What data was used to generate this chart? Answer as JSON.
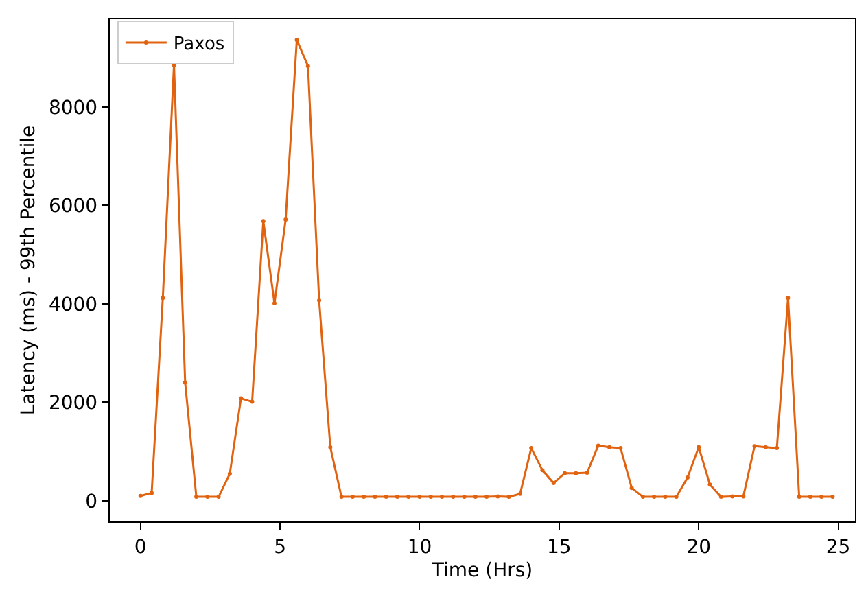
{
  "chart_data": {
    "type": "line",
    "xlabel": "Time (Hrs)",
    "ylabel": "Latency (ms) - 99th Percentile",
    "x": [
      0,
      0.4,
      0.8,
      1.2,
      1.6,
      2.0,
      2.4,
      2.8,
      3.2,
      3.6,
      4.0,
      4.4,
      4.8,
      5.2,
      5.6,
      6.0,
      6.4,
      6.8,
      7.2,
      7.6,
      8.0,
      8.4,
      8.8,
      9.2,
      9.6,
      10.0,
      10.4,
      10.8,
      11.2,
      11.6,
      12.0,
      12.4,
      12.8,
      13.2,
      13.6,
      14.0,
      14.4,
      14.8,
      15.2,
      15.6,
      16.0,
      16.4,
      16.8,
      17.2,
      17.6,
      18.0,
      18.4,
      18.8,
      19.2,
      19.6,
      20.0,
      20.4,
      20.8,
      21.2,
      21.6,
      22.0,
      22.4,
      22.8,
      23.2,
      23.6,
      24.0,
      24.4,
      24.8
    ],
    "series": [
      {
        "name": "Paxos",
        "color": "#e1620f",
        "values": [
          100,
          160,
          4120,
          8850,
          2400,
          80,
          80,
          80,
          550,
          2080,
          2010,
          5680,
          4010,
          5710,
          9360,
          8830,
          4070,
          1090,
          80,
          80,
          80,
          80,
          80,
          80,
          80,
          80,
          80,
          80,
          80,
          80,
          80,
          80,
          90,
          80,
          140,
          1070,
          620,
          360,
          560,
          560,
          570,
          1120,
          1090,
          1070,
          260,
          80,
          80,
          80,
          80,
          470,
          1090,
          330,
          80,
          90,
          90,
          1110,
          1090,
          1070,
          4120,
          80,
          80,
          80,
          80
        ]
      }
    ],
    "xlim": [
      -1.1,
      25.6
    ],
    "xticks": [
      0,
      5,
      10,
      15,
      20,
      25
    ],
    "ylim": [
      -420,
      9780
    ],
    "yticks": [
      0,
      2000,
      4000,
      6000,
      8000
    ],
    "legend": "top left",
    "marker": "circle",
    "line_style": "solid"
  }
}
